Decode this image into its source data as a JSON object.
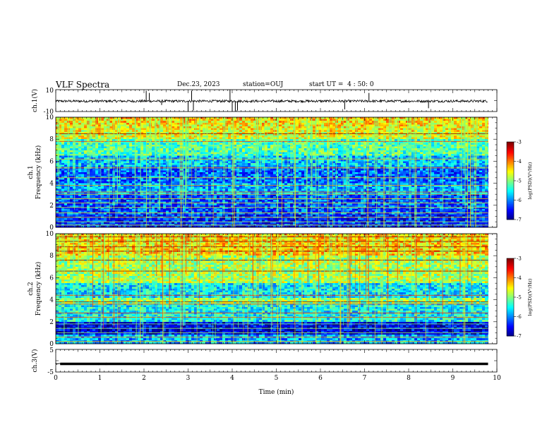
{
  "header": {
    "title": "VLF Spectra",
    "date": "Dec.23, 2023",
    "station": "station=OUJ",
    "start": "start UT =  4 : 50: 0"
  },
  "chart_data": [
    {
      "type": "line",
      "name": "waveform-ch1",
      "ylabel": "ch.1(V)",
      "ylim": [
        -10,
        10
      ],
      "yticks": [
        "10",
        "-10"
      ],
      "xlim": [
        0,
        10
      ],
      "data_end_min": 9.8,
      "baseline": -0.5,
      "spikes": [
        {
          "x": 2.05,
          "y": 9
        },
        {
          "x": 2.12,
          "y": 7
        },
        {
          "x": 2.4,
          "y": -4
        },
        {
          "x": 3.0,
          "y": -10
        },
        {
          "x": 3.08,
          "y": 9
        },
        {
          "x": 3.12,
          "y": -9
        },
        {
          "x": 3.95,
          "y": 10
        },
        {
          "x": 4.0,
          "y": -10
        },
        {
          "x": 4.07,
          "y": -10
        },
        {
          "x": 4.12,
          "y": -9
        },
        {
          "x": 6.55,
          "y": -8
        },
        {
          "x": 7.1,
          "y": 7
        },
        {
          "x": 8.45,
          "y": -7
        }
      ]
    },
    {
      "type": "heatmap",
      "name": "spectrogram-ch1",
      "ylabel": "ch.1\nFrequency (kHz)",
      "xlim": [
        0,
        10
      ],
      "ylim": [
        0,
        10
      ],
      "data_end_min": 9.8,
      "colorbar": {
        "label": "log(PSD)(V²/Hz)",
        "range": [
          -7,
          -3
        ],
        "ticks": [
          "-3",
          "-4",
          "-5",
          "-6",
          "-7"
        ]
      }
    },
    {
      "type": "heatmap",
      "name": "spectrogram-ch2",
      "ylabel": "ch.2\nFrequency (kHz)",
      "xlim": [
        0,
        10
      ],
      "ylim": [
        0,
        10
      ],
      "data_end_min": 9.8,
      "colorbar": {
        "label": "log(PSD)(V²/Hz)",
        "range": [
          -7,
          -3
        ],
        "ticks": [
          "-3",
          "-4",
          "-5",
          "-6",
          "-7"
        ]
      }
    },
    {
      "type": "line",
      "name": "waveform-ch3",
      "ylabel": "ch.3(V)",
      "ylim": [
        -5,
        5
      ],
      "yticks": [
        "5",
        "-5"
      ],
      "xlim": [
        0,
        10
      ],
      "data_end_min": 9.8,
      "baseline": -1.4
    }
  ],
  "axes": {
    "xlabel": "Time (min)",
    "xticks": [
      "0",
      "1",
      "2",
      "3",
      "4",
      "5",
      "6",
      "7",
      "8",
      "9",
      "10"
    ],
    "freq_ticks": [
      "0",
      "2",
      "4",
      "6",
      "8",
      "10"
    ]
  }
}
